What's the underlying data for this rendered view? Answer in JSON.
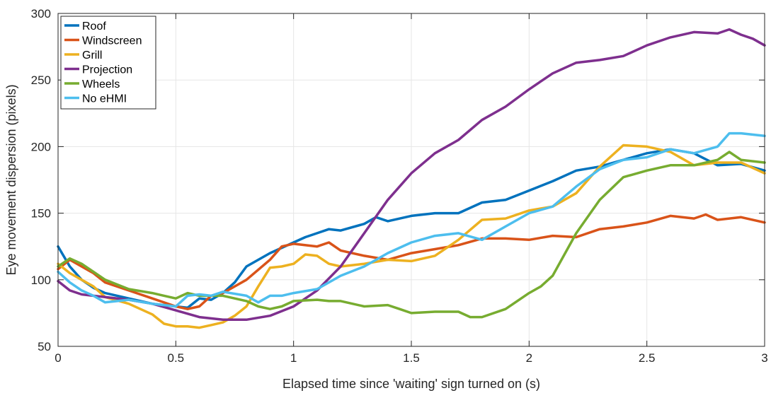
{
  "chart_data": {
    "type": "line",
    "xlabel": "Elapsed time since 'waiting' sign turned on (s)",
    "ylabel": "Eye movement dispersion (pixels)",
    "xlim": [
      0,
      3
    ],
    "ylim": [
      50,
      300
    ],
    "xticks": [
      0,
      0.5,
      1,
      1.5,
      2,
      2.5,
      3
    ],
    "xtick_labels": [
      "0",
      "0.5",
      "1",
      "1.5",
      "2",
      "2.5",
      "3"
    ],
    "yticks": [
      50,
      100,
      150,
      200,
      250,
      300
    ],
    "ytick_labels": [
      "50",
      "100",
      "150",
      "200",
      "250",
      "300"
    ],
    "grid": true,
    "legend_position": "top-left",
    "series": [
      {
        "name": "Roof",
        "color": "#0072BD",
        "x": [
          0,
          0.05,
          0.1,
          0.15,
          0.2,
          0.3,
          0.4,
          0.5,
          0.55,
          0.6,
          0.65,
          0.7,
          0.75,
          0.8,
          0.9,
          1.0,
          1.05,
          1.1,
          1.15,
          1.2,
          1.3,
          1.35,
          1.4,
          1.5,
          1.6,
          1.7,
          1.8,
          1.9,
          2.0,
          2.1,
          2.2,
          2.3,
          2.4,
          2.5,
          2.6,
          2.7,
          2.8,
          2.9,
          3.0
        ],
        "y": [
          125,
          110,
          100,
          94,
          90,
          86,
          82,
          80,
          79,
          86,
          85,
          90,
          98,
          110,
          120,
          128,
          132,
          135,
          138,
          137,
          142,
          147,
          144,
          148,
          150,
          150,
          158,
          160,
          167,
          174,
          182,
          185,
          190,
          195,
          198,
          195,
          186,
          187,
          182
        ]
      },
      {
        "name": "Windscreen",
        "color": "#D95319",
        "x": [
          0,
          0.05,
          0.1,
          0.15,
          0.2,
          0.3,
          0.4,
          0.5,
          0.55,
          0.6,
          0.65,
          0.7,
          0.8,
          0.9,
          0.95,
          1.0,
          1.1,
          1.15,
          1.2,
          1.3,
          1.4,
          1.5,
          1.6,
          1.7,
          1.8,
          1.9,
          2.0,
          2.1,
          2.2,
          2.3,
          2.4,
          2.5,
          2.6,
          2.7,
          2.75,
          2.8,
          2.9,
          3.0
        ],
        "y": [
          108,
          115,
          110,
          105,
          98,
          92,
          86,
          80,
          78,
          80,
          88,
          90,
          100,
          115,
          125,
          127,
          125,
          128,
          122,
          118,
          115,
          120,
          123,
          126,
          131,
          131,
          130,
          133,
          132,
          138,
          140,
          143,
          148,
          146,
          149,
          145,
          147,
          143
        ]
      },
      {
        "name": "Grill",
        "color": "#EDB120",
        "x": [
          0,
          0.05,
          0.1,
          0.15,
          0.2,
          0.3,
          0.4,
          0.45,
          0.5,
          0.55,
          0.6,
          0.65,
          0.7,
          0.75,
          0.8,
          0.85,
          0.9,
          0.95,
          1.0,
          1.05,
          1.1,
          1.15,
          1.2,
          1.3,
          1.4,
          1.5,
          1.6,
          1.7,
          1.8,
          1.9,
          2.0,
          2.1,
          2.2,
          2.3,
          2.4,
          2.5,
          2.6,
          2.7,
          2.8,
          2.9,
          3.0
        ],
        "y": [
          112,
          105,
          100,
          95,
          87,
          82,
          74,
          67,
          65,
          65,
          64,
          66,
          68,
          73,
          80,
          95,
          109,
          110,
          112,
          119,
          118,
          112,
          110,
          112,
          115,
          114,
          118,
          130,
          145,
          146,
          152,
          155,
          165,
          185,
          201,
          200,
          196,
          186,
          188,
          188,
          180
        ]
      },
      {
        "name": "Projection",
        "color": "#7E2F8E",
        "x": [
          0,
          0.05,
          0.1,
          0.2,
          0.3,
          0.4,
          0.5,
          0.6,
          0.7,
          0.8,
          0.9,
          1.0,
          1.1,
          1.2,
          1.3,
          1.4,
          1.5,
          1.6,
          1.7,
          1.8,
          1.9,
          2.0,
          2.1,
          2.2,
          2.3,
          2.4,
          2.5,
          2.6,
          2.7,
          2.8,
          2.85,
          2.9,
          2.95,
          3.0
        ],
        "y": [
          99,
          92,
          89,
          87,
          85,
          82,
          77,
          72,
          70,
          70,
          73,
          80,
          92,
          110,
          135,
          160,
          180,
          195,
          205,
          220,
          230,
          243,
          255,
          263,
          265,
          268,
          276,
          282,
          286,
          285,
          288,
          284,
          281,
          276
        ]
      },
      {
        "name": "Wheels",
        "color": "#77AC30",
        "x": [
          0,
          0.05,
          0.1,
          0.15,
          0.2,
          0.3,
          0.4,
          0.45,
          0.5,
          0.55,
          0.6,
          0.65,
          0.7,
          0.8,
          0.85,
          0.9,
          0.95,
          1.0,
          1.1,
          1.15,
          1.2,
          1.3,
          1.4,
          1.45,
          1.5,
          1.6,
          1.7,
          1.75,
          1.8,
          1.9,
          2.0,
          2.05,
          2.1,
          2.2,
          2.3,
          2.4,
          2.5,
          2.6,
          2.7,
          2.8,
          2.85,
          2.9,
          3.0
        ],
        "y": [
          110,
          116,
          112,
          106,
          100,
          93,
          90,
          88,
          86,
          90,
          88,
          88,
          88,
          84,
          80,
          78,
          80,
          84,
          85,
          84,
          84,
          80,
          81,
          78,
          75,
          76,
          76,
          72,
          72,
          78,
          90,
          95,
          103,
          135,
          160,
          177,
          182,
          186,
          186,
          190,
          196,
          190,
          188
        ]
      },
      {
        "name": "No eHMI",
        "color": "#4DBEEE",
        "x": [
          0,
          0.05,
          0.1,
          0.15,
          0.2,
          0.3,
          0.4,
          0.5,
          0.55,
          0.6,
          0.65,
          0.7,
          0.8,
          0.85,
          0.9,
          0.95,
          1.0,
          1.1,
          1.2,
          1.3,
          1.4,
          1.5,
          1.6,
          1.7,
          1.8,
          1.9,
          2.0,
          2.1,
          2.2,
          2.3,
          2.4,
          2.5,
          2.6,
          2.7,
          2.8,
          2.85,
          2.9,
          3.0
        ],
        "y": [
          106,
          98,
          92,
          88,
          83,
          85,
          82,
          80,
          88,
          89,
          88,
          91,
          88,
          83,
          88,
          88,
          90,
          93,
          103,
          110,
          120,
          128,
          133,
          135,
          130,
          140,
          150,
          155,
          170,
          183,
          190,
          192,
          198,
          195,
          200,
          210,
          210,
          208
        ]
      }
    ]
  }
}
